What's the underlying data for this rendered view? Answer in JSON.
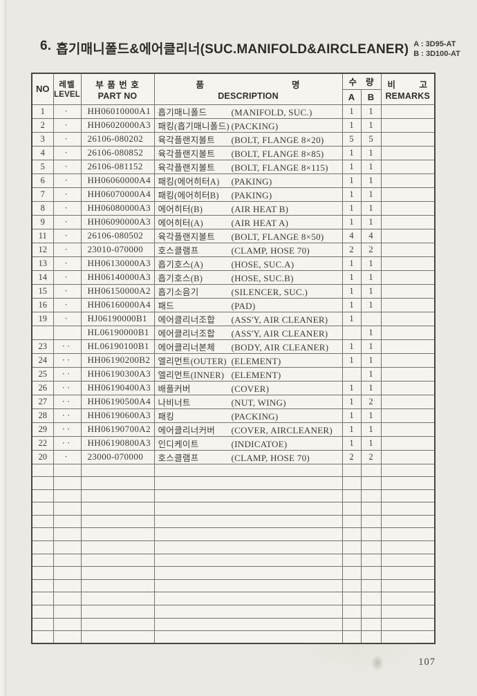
{
  "page": {
    "section_number": "6.",
    "title": "흡기매니폴드&에어클리너(SUC.MANIFOLD&AIRCLEANER)",
    "variant_a": "A : 3D95-AT",
    "variant_b": "B : 3D100-AT",
    "page_number": "107"
  },
  "table": {
    "headers": {
      "no": "NO",
      "level_kr": "레벨",
      "level_en": "LEVEL",
      "part_kr": "부 품 번 호",
      "part_en": "PART NO",
      "desc_kr_1": "품",
      "desc_kr_2": "명",
      "desc_en": "DESCRIPTION",
      "qty_kr_1": "수",
      "qty_kr_2": "량",
      "qty_a": "A",
      "qty_b": "B",
      "remarks_kr_1": "비",
      "remarks_kr_2": "고",
      "remarks_en": "REMARKS"
    },
    "rows": [
      {
        "no": "1",
        "level": "·",
        "part": "HH06010000A1",
        "desc_kr": "흡기매니폴드",
        "desc_en": "(MANIFOLD, SUC.)",
        "qty_a": "1",
        "qty_b": "1",
        "remarks": ""
      },
      {
        "no": "2",
        "level": "·",
        "part": "HH06020000A3",
        "desc_kr": "패킹(흡기매니폴드)",
        "desc_en": "(PACKING)",
        "qty_a": "1",
        "qty_b": "1",
        "remarks": ""
      },
      {
        "no": "3",
        "level": "·",
        "part": "26106-080202",
        "desc_kr": "육각플랜지볼트",
        "desc_en": "(BOLT, FLANGE 8×20)",
        "qty_a": "5",
        "qty_b": "5",
        "remarks": ""
      },
      {
        "no": "4",
        "level": "·",
        "part": "26106-080852",
        "desc_kr": "육각플랜지볼트",
        "desc_en": "(BOLT, FLANGE 8×85)",
        "qty_a": "1",
        "qty_b": "1",
        "remarks": ""
      },
      {
        "no": "5",
        "level": "·",
        "part": "26106-081152",
        "desc_kr": "육각플랜지볼트",
        "desc_en": "(BOLT, FLANGE 8×115)",
        "qty_a": "1",
        "qty_b": "1",
        "remarks": ""
      },
      {
        "no": "6",
        "level": "·",
        "part": "HH06060000A4",
        "desc_kr": "패킹(에어히터A)",
        "desc_en": "(PAKING)",
        "qty_a": "1",
        "qty_b": "1",
        "remarks": ""
      },
      {
        "no": "7",
        "level": "·",
        "part": "HH06070000A4",
        "desc_kr": "패킹(에어히터B)",
        "desc_en": "(PAKING)",
        "qty_a": "1",
        "qty_b": "1",
        "remarks": ""
      },
      {
        "no": "8",
        "level": "·",
        "part": "HH06080000A3",
        "desc_kr": "에어히터(B)",
        "desc_en": "(AIR HEAT B)",
        "qty_a": "1",
        "qty_b": "1",
        "remarks": ""
      },
      {
        "no": "9",
        "level": "·",
        "part": "HH06090000A3",
        "desc_kr": "에어히터(A)",
        "desc_en": "(AIR HEAT A)",
        "qty_a": "1",
        "qty_b": "1",
        "remarks": ""
      },
      {
        "no": "11",
        "level": "·",
        "part": "26106-080502",
        "desc_kr": "육각플랜지볼트",
        "desc_en": "(BOLT, FLANGE 8×50)",
        "qty_a": "4",
        "qty_b": "4",
        "remarks": ""
      },
      {
        "no": "12",
        "level": "·",
        "part": "23010-070000",
        "desc_kr": "호스클램프",
        "desc_en": "(CLAMP, HOSE 70)",
        "qty_a": "2",
        "qty_b": "2",
        "remarks": ""
      },
      {
        "no": "13",
        "level": "·",
        "part": "HH06130000A3",
        "desc_kr": "흡기호스(A)",
        "desc_en": "(HOSE, SUC.A)",
        "qty_a": "1",
        "qty_b": "1",
        "remarks": ""
      },
      {
        "no": "14",
        "level": "·",
        "part": "HH06140000A3",
        "desc_kr": "흡기호스(B)",
        "desc_en": "(HOSE, SUC.B)",
        "qty_a": "1",
        "qty_b": "1",
        "remarks": ""
      },
      {
        "no": "15",
        "level": "·",
        "part": "HH06150000A2",
        "desc_kr": "흡기소음기",
        "desc_en": "(SILENCER, SUC.)",
        "qty_a": "1",
        "qty_b": "1",
        "remarks": ""
      },
      {
        "no": "16",
        "level": "·",
        "part": "HH06160000A4",
        "desc_kr": "패드",
        "desc_en": "(PAD)",
        "qty_a": "1",
        "qty_b": "1",
        "remarks": ""
      },
      {
        "no": "19",
        "level": "·",
        "part": "HJ06190000B1",
        "desc_kr": "에어클리너조합",
        "desc_en": "(ASS'Y, AIR CLEANER)",
        "qty_a": "1",
        "qty_b": "",
        "remarks": ""
      },
      {
        "no": "",
        "level": "",
        "part": "HL06190000B1",
        "desc_kr": "에어클리너조합",
        "desc_en": "(ASS'Y, AIR CLEANER)",
        "qty_a": "",
        "qty_b": "1",
        "remarks": ""
      },
      {
        "no": "23",
        "level": "··",
        "part": "HL06190100B1",
        "desc_kr": "에어클리너본체",
        "desc_en": "(BODY, AIR CLEANER)",
        "qty_a": "1",
        "qty_b": "1",
        "remarks": ""
      },
      {
        "no": "24",
        "level": "··",
        "part": "HH06190200B2",
        "desc_kr": "엘리먼트(OUTER)",
        "desc_en": "(ELEMENT)",
        "qty_a": "1",
        "qty_b": "1",
        "remarks": ""
      },
      {
        "no": "25",
        "level": "··",
        "part": "HH06190300A3",
        "desc_kr": "엘리먼트(INNER)",
        "desc_en": "(ELEMENT)",
        "qty_a": "",
        "qty_b": "1",
        "remarks": ""
      },
      {
        "no": "26",
        "level": "··",
        "part": "HH06190400A3",
        "desc_kr": "배플커버",
        "desc_en": "(COVER)",
        "qty_a": "1",
        "qty_b": "1",
        "remarks": ""
      },
      {
        "no": "27",
        "level": "··",
        "part": "HH06190500A4",
        "desc_kr": "나비너트",
        "desc_en": "(NUT, WING)",
        "qty_a": "1",
        "qty_b": "2",
        "remarks": ""
      },
      {
        "no": "28",
        "level": "··",
        "part": "HH06190600A3",
        "desc_kr": "패킹",
        "desc_en": "(PACKING)",
        "qty_a": "1",
        "qty_b": "1",
        "remarks": ""
      },
      {
        "no": "29",
        "level": "··",
        "part": "HH06190700A2",
        "desc_kr": "에어클리너커버",
        "desc_en": "(COVER, AIRCLEANER)",
        "qty_a": "1",
        "qty_b": "1",
        "remarks": ""
      },
      {
        "no": "22",
        "level": "··",
        "part": "HH06190800A3",
        "desc_kr": "인디케이트",
        "desc_en": "(INDICATOE)",
        "qty_a": "1",
        "qty_b": "1",
        "remarks": ""
      },
      {
        "no": "20",
        "level": "·",
        "part": "23000-070000",
        "desc_kr": "호스클램프",
        "desc_en": "(CLAMP, HOSE 70)",
        "qty_a": "2",
        "qty_b": "2",
        "remarks": ""
      }
    ],
    "empty_rows": 14
  }
}
